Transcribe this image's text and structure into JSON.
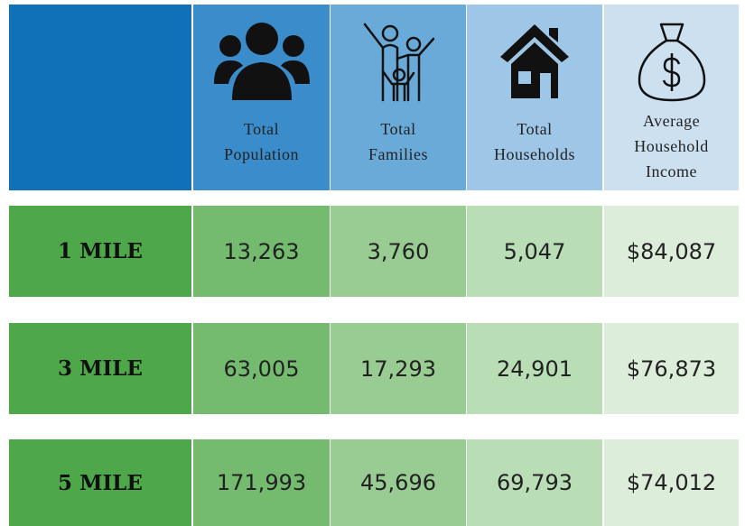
{
  "header": {
    "columns": [
      [
        "Total",
        "Population"
      ],
      [
        "Total",
        "Families"
      ],
      [
        "Total",
        "Households"
      ],
      [
        "Average",
        "Household",
        "Income"
      ]
    ]
  },
  "table": {
    "rows": [
      [
        "1 MILE",
        "13,263",
        "3,760",
        "5,047",
        "$84,087"
      ],
      [
        "3 MILE",
        "63,005",
        "17,293",
        "24,901",
        "$76,873"
      ],
      [
        "5 MILE",
        "171,993",
        "45,696",
        "69,793",
        "$74,012"
      ]
    ]
  }
}
